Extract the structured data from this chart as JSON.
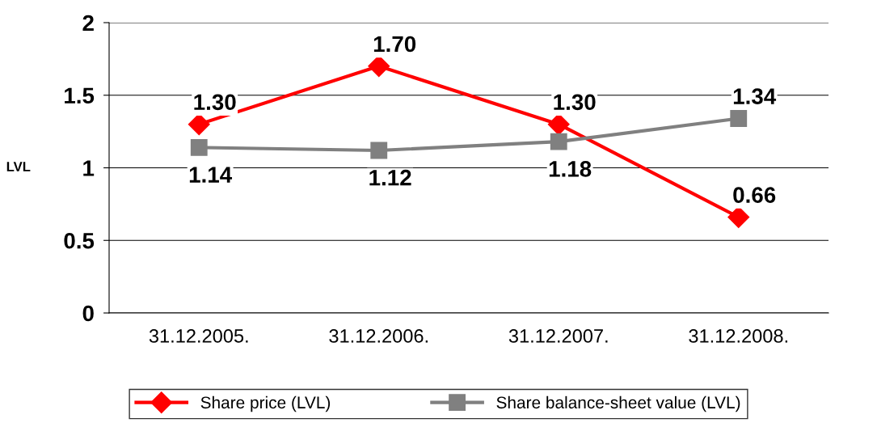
{
  "chart_data": {
    "type": "line",
    "ylabel": "LVL",
    "categories": [
      "31.12.2005.",
      "31.12.2006.",
      "31.12.2007.",
      "31.12.2008."
    ],
    "series": [
      {
        "name": "Share price (LVL)",
        "color": "#ff0000",
        "marker": "diamond",
        "values": [
          1.3,
          1.7,
          1.3,
          0.66
        ],
        "value_labels": [
          "1.30",
          "1.70",
          "1.30",
          "0.66"
        ]
      },
      {
        "name": "Share balance-sheet value (LVL)",
        "color": "#808080",
        "marker": "square",
        "values": [
          1.14,
          1.12,
          1.18,
          1.34
        ],
        "value_labels": [
          "1.14",
          "1.12",
          "1.18",
          "1.34"
        ]
      }
    ],
    "ylim": [
      0,
      2
    ],
    "yticks": [
      0,
      0.5,
      1,
      1.5,
      2
    ],
    "grid": "y",
    "legend": "bottom",
    "line_style": "solid"
  }
}
